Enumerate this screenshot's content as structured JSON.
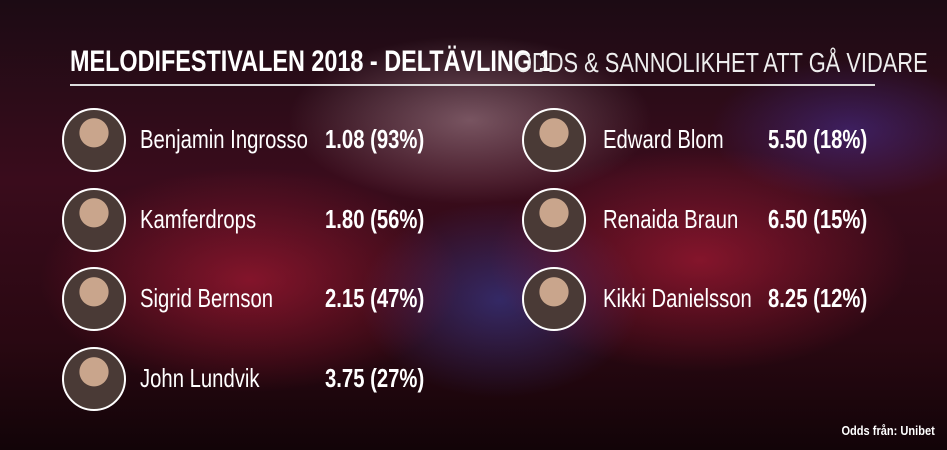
{
  "header": {
    "title": "MELODIFESTIVALEN 2018 - DELTÄVLING 1",
    "subtitle": "ODDS & SANNOLIKHET ATT GÅ VIDARE"
  },
  "entries": [
    {
      "name": "Benjamin Ingrosso",
      "odds": "1.08 (93%)"
    },
    {
      "name": "Kamferdrops",
      "odds": "1.80 (56%)"
    },
    {
      "name": "Sigrid Bernson",
      "odds": "2.15 (47%)"
    },
    {
      "name": "John Lundvik",
      "odds": "3.75 (27%)"
    },
    {
      "name": "Edward Blom",
      "odds": "5.50 (18%)"
    },
    {
      "name": "Renaida Braun",
      "odds": "6.50 (15%)"
    },
    {
      "name": "Kikki Danielsson",
      "odds": "8.25 (12%)"
    }
  ],
  "footer": {
    "source": "Odds från: Unibet"
  }
}
